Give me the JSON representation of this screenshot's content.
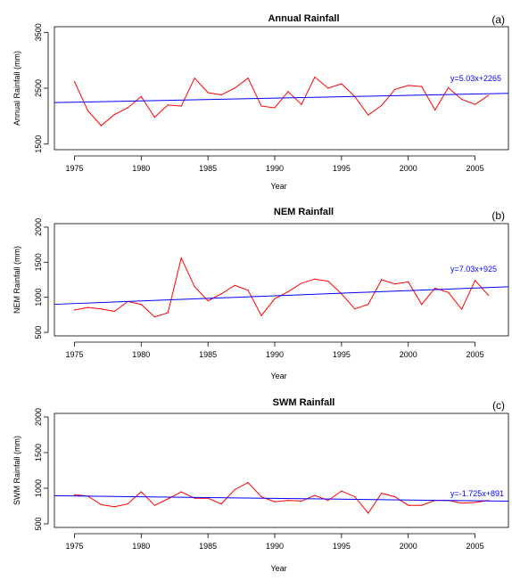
{
  "chart_data": [
    {
      "type": "line",
      "panel": "(a)",
      "title": "Annual Rainfall",
      "xlabel": "Year",
      "ylabel": "Annual Rainfall (mm)",
      "xlim": [
        1973.5,
        2007.5
      ],
      "ylim": [
        1400,
        3600
      ],
      "xticks": [
        1975,
        1980,
        1985,
        1990,
        1995,
        2000,
        2005
      ],
      "yticks": [
        1500,
        2500,
        3500
      ],
      "grid": false,
      "series": [
        {
          "color": "#ff0000",
          "x": [
            1975,
            1976,
            1977,
            1978,
            1979,
            1980,
            1981,
            1982,
            1983,
            1984,
            1985,
            1986,
            1987,
            1988,
            1989,
            1990,
            1991,
            1992,
            1993,
            1994,
            1995,
            1996,
            1997,
            1998,
            1999,
            2000,
            2001,
            2002,
            2003,
            2004,
            2005,
            2006
          ],
          "y": [
            2620,
            2100,
            1830,
            2030,
            2150,
            2350,
            1980,
            2200,
            2180,
            2680,
            2420,
            2380,
            2500,
            2680,
            2180,
            2150,
            2440,
            2210,
            2700,
            2500,
            2580,
            2350,
            2020,
            2190,
            2480,
            2550,
            2530,
            2110,
            2510,
            2300,
            2210,
            2370
          ]
        }
      ],
      "trend": {
        "color": "#0000ff",
        "equation": "y=5.03x+2265",
        "x": [
          1973.5,
          2007.5
        ],
        "y": [
          2242,
          2408
        ]
      }
    },
    {
      "type": "line",
      "panel": "(b)",
      "title": "NEM Rainfall",
      "xlabel": "Year",
      "ylabel": "NEM Rainfall (mm)",
      "xlim": [
        1973.5,
        2007.5
      ],
      "ylim": [
        450,
        2050
      ],
      "xticks": [
        1975,
        1980,
        1985,
        1990,
        1995,
        2000,
        2005
      ],
      "yticks": [
        500,
        1000,
        1500,
        2000
      ],
      "grid": false,
      "series": [
        {
          "color": "#ff0000",
          "x": [
            1975,
            1976,
            1977,
            1978,
            1979,
            1980,
            1981,
            1982,
            1983,
            1984,
            1985,
            1986,
            1987,
            1988,
            1989,
            1990,
            1991,
            1992,
            1993,
            1994,
            1995,
            1996,
            1997,
            1998,
            1999,
            2000,
            2001,
            2002,
            2003,
            2004,
            2005,
            2006
          ],
          "y": [
            820,
            855,
            835,
            800,
            940,
            900,
            720,
            780,
            1560,
            1150,
            950,
            1050,
            1170,
            1100,
            740,
            980,
            1080,
            1200,
            1260,
            1230,
            1050,
            835,
            900,
            1250,
            1190,
            1220,
            900,
            1130,
            1070,
            830,
            1240,
            1030
          ]
        }
      ],
      "trend": {
        "color": "#0000ff",
        "equation": "y=7.03x+925",
        "x": [
          1973.5,
          2007.5
        ],
        "y": [
          900,
          1150
        ]
      }
    },
    {
      "type": "line",
      "panel": "(c)",
      "title": "SWM Rainfall",
      "xlabel": "Year",
      "ylabel": "SWM Rainfall (mm)",
      "xlim": [
        1973.5,
        2007.5
      ],
      "ylim": [
        450,
        2050
      ],
      "xticks": [
        1975,
        1980,
        1985,
        1990,
        1995,
        2000,
        2005
      ],
      "yticks": [
        500,
        1000,
        1500,
        2000
      ],
      "grid": false,
      "series": [
        {
          "color": "#ff0000",
          "x": [
            1975,
            1976,
            1977,
            1978,
            1979,
            1980,
            1981,
            1982,
            1983,
            1984,
            1985,
            1986,
            1987,
            1988,
            1989,
            1990,
            1991,
            1992,
            1993,
            1994,
            1995,
            1996,
            1997,
            1998,
            1999,
            2000,
            2001,
            2002,
            2003,
            2004,
            2005,
            2006
          ],
          "y": [
            910,
            890,
            770,
            740,
            780,
            950,
            760,
            850,
            950,
            860,
            860,
            780,
            980,
            1080,
            880,
            810,
            830,
            820,
            900,
            830,
            960,
            880,
            650,
            930,
            880,
            760,
            760,
            830,
            830,
            790,
            800,
            830
          ]
        }
      ],
      "trend": {
        "color": "#0000ff",
        "equation": "y=-1.725x+891",
        "x": [
          1973.5,
          2007.5
        ],
        "y": [
          895,
          818
        ]
      }
    }
  ]
}
